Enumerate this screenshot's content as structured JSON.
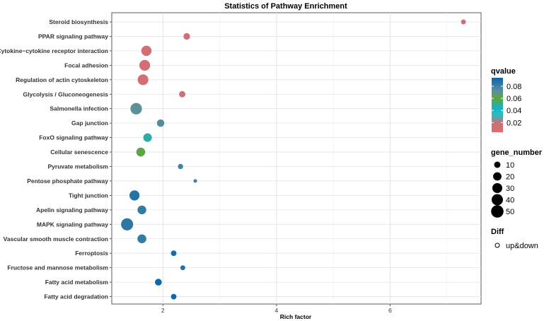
{
  "chart_data": {
    "type": "scatter",
    "title": "Statistics of Pathway Enrichment",
    "xlabel": "Rich factor",
    "ylabel": "",
    "xlim": [
      1.1,
      7.6
    ],
    "xticks": [
      2,
      4,
      6
    ],
    "categories": [
      "Steroid biosynthesis",
      "PPAR signaling pathway",
      "Cytokine−cytokine receptor interaction",
      "Focal adhesion",
      "Regulation of actin cytoskeleton",
      "Glycolysis / Gluconeogenesis",
      "Salmonella infection",
      "Gap junction",
      "FoxO signaling pathway",
      "Cellular senescence",
      "Pyruvate metabolism",
      "Pentose phosphate pathway",
      "Tight junction",
      "Apelin signaling pathway",
      "MAPK signaling pathway",
      "Vascular smooth muscle contraction",
      "Ferroptosis",
      "Fructose and mannose metabolism",
      "Fatty acid metabolism",
      "Fatty acid degradation"
    ],
    "points": [
      {
        "pathway": "Steroid biosynthesis",
        "rich_factor": 7.29,
        "gene_number": 5,
        "qvalue": 0.012
      },
      {
        "pathway": "PPAR signaling pathway",
        "rich_factor": 2.42,
        "gene_number": 11,
        "qvalue": 0.013
      },
      {
        "pathway": "Cytokine−cytokine receptor interaction",
        "rich_factor": 1.71,
        "gene_number": 32,
        "qvalue": 0.012
      },
      {
        "pathway": "Focal adhesion",
        "rich_factor": 1.68,
        "gene_number": 36,
        "qvalue": 0.012
      },
      {
        "pathway": "Regulation of actin cytoskeleton",
        "rich_factor": 1.65,
        "gene_number": 36,
        "qvalue": 0.012
      },
      {
        "pathway": "Glycolysis / Gluconeogenesis",
        "rich_factor": 2.34,
        "gene_number": 10,
        "qvalue": 0.017
      },
      {
        "pathway": "Salmonella infection",
        "rich_factor": 1.53,
        "gene_number": 42,
        "qvalue": 0.071
      },
      {
        "pathway": "Gap junction",
        "rich_factor": 1.96,
        "gene_number": 15,
        "qvalue": 0.074
      },
      {
        "pathway": "FoxO signaling pathway",
        "rich_factor": 1.73,
        "gene_number": 21,
        "qvalue": 0.048
      },
      {
        "pathway": "Cellular senescence",
        "rich_factor": 1.61,
        "gene_number": 23,
        "qvalue": 0.062
      },
      {
        "pathway": "Pyruvate metabolism",
        "rich_factor": 2.31,
        "gene_number": 6,
        "qvalue": 0.079
      },
      {
        "pathway": "Pentose phosphate pathway",
        "rich_factor": 2.57,
        "gene_number": 2,
        "qvalue": 0.08
      },
      {
        "pathway": "Tight junction",
        "rich_factor": 1.5,
        "gene_number": 31,
        "qvalue": 0.087
      },
      {
        "pathway": "Apelin signaling pathway",
        "rich_factor": 1.63,
        "gene_number": 22,
        "qvalue": 0.083
      },
      {
        "pathway": "MAPK signaling pathway",
        "rich_factor": 1.37,
        "gene_number": 47,
        "qvalue": 0.085
      },
      {
        "pathway": "Vascular smooth muscle contraction",
        "rich_factor": 1.63,
        "gene_number": 23,
        "qvalue": 0.083
      },
      {
        "pathway": "Ferroptosis",
        "rich_factor": 2.19,
        "gene_number": 7,
        "qvalue": 0.091
      },
      {
        "pathway": "Fructose and mannose metabolism",
        "rich_factor": 2.35,
        "gene_number": 5,
        "qvalue": 0.088
      },
      {
        "pathway": "Fatty acid metabolism",
        "rich_factor": 1.92,
        "gene_number": 12,
        "qvalue": 0.093
      },
      {
        "pathway": "Fatty acid degradation",
        "rich_factor": 2.19,
        "gene_number": 7,
        "qvalue": 0.092
      }
    ],
    "grid": true,
    "legends": {
      "color": {
        "title": "qvalue",
        "ticks": [
          0.08,
          0.06,
          0.04,
          0.02
        ],
        "range": [
          0.004,
          0.094
        ],
        "scale": [
          {
            "value": 0.004,
            "color": "#E8666E"
          },
          {
            "value": 0.02,
            "color": "#C0757C"
          },
          {
            "value": 0.035,
            "color": "#17C3CB"
          },
          {
            "value": 0.045,
            "color": "#1AAFC2"
          },
          {
            "value": 0.06,
            "color": "#5BA838"
          },
          {
            "value": 0.072,
            "color": "#5C8FA0"
          },
          {
            "value": 0.094,
            "color": "#0A66A8"
          }
        ]
      },
      "size": {
        "title": "gene_number",
        "values": [
          10,
          20,
          30,
          40,
          50
        ],
        "labels": [
          "10",
          "20",
          "30",
          "40",
          "50"
        ]
      },
      "shape": {
        "title": "Diff",
        "label": "up&down"
      }
    }
  }
}
